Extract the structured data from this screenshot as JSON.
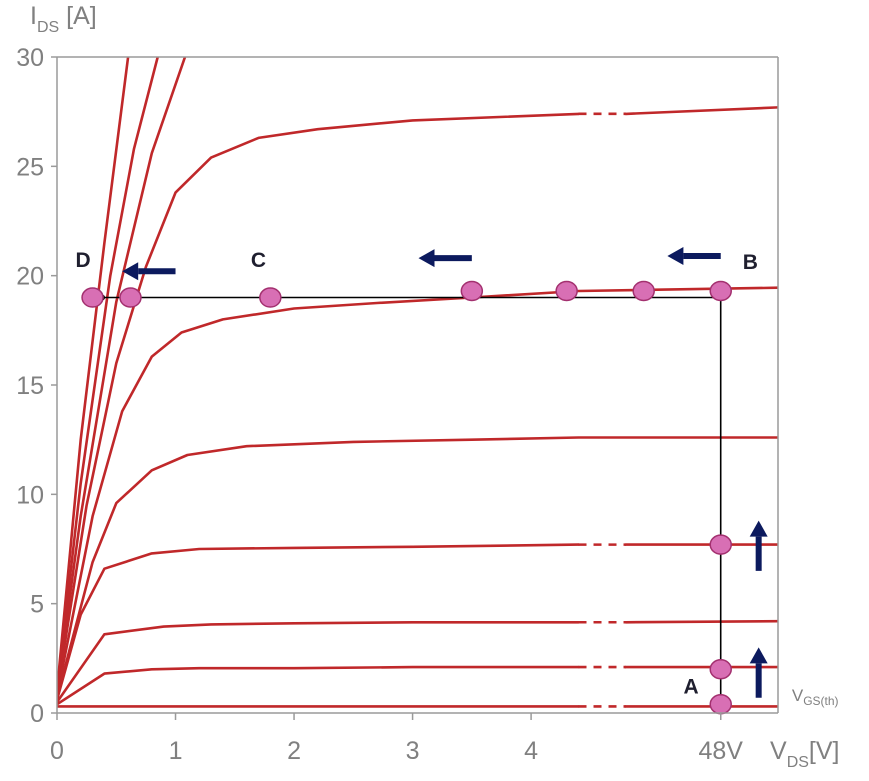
{
  "chart_data": {
    "type": "line",
    "title": "",
    "ylabel": {
      "main": "I",
      "sub": "DS",
      "unit": "[A]"
    },
    "xlabel": {
      "main": "V",
      "sub": "DS",
      "unit": "[V]"
    },
    "ylim": [
      0,
      30
    ],
    "xlim": [
      0,
      6.1
    ],
    "y_ticks": [
      {
        "value": 0,
        "label": "0"
      },
      {
        "value": 5,
        "label": "5"
      },
      {
        "value": 10,
        "label": "10"
      },
      {
        "value": 15,
        "label": "15"
      },
      {
        "value": 20,
        "label": "20"
      },
      {
        "value": 25,
        "label": "25"
      },
      {
        "value": 30,
        "label": "30"
      }
    ],
    "x_ticks": [
      {
        "value": 0,
        "label": "0"
      },
      {
        "value": 1,
        "label": "1"
      },
      {
        "value": 2,
        "label": "2"
      },
      {
        "value": 3,
        "label": "3"
      },
      {
        "value": 4,
        "label": "4"
      },
      {
        "value": 5.6,
        "label": "48V"
      }
    ],
    "grid": false,
    "colors": {
      "curve": "#c0282a",
      "marker_fill": "#d86fb4",
      "marker_stroke": "#a3306f",
      "arrow": "#0c1a5e",
      "load_line": "#000000",
      "frame": "#9a9a9a",
      "text": "#808080"
    },
    "series": [
      {
        "points": [
          [
            0,
            0.3
          ],
          [
            0.5,
            0.3
          ],
          [
            1,
            0.3
          ],
          [
            2,
            0.3
          ],
          [
            3,
            0.3
          ],
          [
            4.4,
            0.3
          ]
        ],
        "tail": [
          [
            4.8,
            0.3
          ],
          [
            6.1,
            0.3
          ]
        ]
      },
      {
        "points": [
          [
            0,
            0.4
          ],
          [
            0.4,
            1.8
          ],
          [
            0.8,
            2.0
          ],
          [
            1.2,
            2.05
          ],
          [
            2,
            2.05
          ],
          [
            3,
            2.1
          ],
          [
            4.4,
            2.1
          ]
        ],
        "tail": [
          [
            4.8,
            2.1
          ],
          [
            6.1,
            2.1
          ]
        ]
      },
      {
        "points": [
          [
            0,
            0.5
          ],
          [
            0.4,
            3.6
          ],
          [
            0.9,
            3.95
          ],
          [
            1.3,
            4.05
          ],
          [
            2,
            4.1
          ],
          [
            3,
            4.15
          ],
          [
            4.4,
            4.15
          ]
        ],
        "tail": [
          [
            4.8,
            4.15
          ],
          [
            6.1,
            4.2
          ]
        ]
      },
      {
        "points": [
          [
            0,
            0.6
          ],
          [
            0.2,
            4.5
          ],
          [
            0.4,
            6.6
          ],
          [
            0.8,
            7.3
          ],
          [
            1.2,
            7.5
          ],
          [
            2,
            7.55
          ],
          [
            3,
            7.6
          ],
          [
            4.4,
            7.7
          ]
        ],
        "tail": [
          [
            4.8,
            7.7
          ],
          [
            6.1,
            7.7
          ]
        ]
      },
      {
        "points": [
          [
            0,
            0.7
          ],
          [
            0.3,
            6.9
          ],
          [
            0.5,
            9.6
          ],
          [
            0.8,
            11.1
          ],
          [
            1.1,
            11.8
          ],
          [
            1.6,
            12.2
          ],
          [
            2.5,
            12.4
          ],
          [
            3.5,
            12.5
          ],
          [
            4.4,
            12.6
          ],
          [
            6.1,
            12.6
          ]
        ]
      },
      {
        "points": [
          [
            0,
            0.8
          ],
          [
            0.3,
            9.0
          ],
          [
            0.55,
            13.8
          ],
          [
            0.8,
            16.3
          ],
          [
            1.05,
            17.4
          ],
          [
            1.4,
            18.0
          ],
          [
            2.0,
            18.5
          ],
          [
            2.7,
            18.75
          ],
          [
            3.5,
            19.0
          ],
          [
            4.4,
            19.3
          ],
          [
            6.1,
            19.45
          ]
        ]
      },
      {
        "points": [
          [
            0,
            0.9
          ],
          [
            0.25,
            9.5
          ],
          [
            0.5,
            16.0
          ],
          [
            0.75,
            20.4
          ],
          [
            1.0,
            23.8
          ],
          [
            1.3,
            25.4
          ],
          [
            1.7,
            26.3
          ],
          [
            2.2,
            26.7
          ],
          [
            3.0,
            27.1
          ],
          [
            4.4,
            27.4
          ]
        ],
        "tail": [
          [
            4.8,
            27.4
          ],
          [
            6.1,
            27.7
          ]
        ]
      },
      {
        "points": [
          [
            0,
            1.0
          ],
          [
            0.2,
            9.0
          ],
          [
            0.5,
            18.8
          ],
          [
            0.8,
            25.6
          ],
          [
            1.08,
            30.0
          ]
        ]
      },
      {
        "points": [
          [
            0,
            1.0
          ],
          [
            0.2,
            10.5
          ],
          [
            0.45,
            20.0
          ],
          [
            0.65,
            25.8
          ],
          [
            0.85,
            30.0
          ]
        ]
      },
      {
        "points": [
          [
            0,
            1.0
          ],
          [
            0.2,
            12.5
          ],
          [
            0.4,
            21.5
          ],
          [
            0.6,
            30.0
          ]
        ]
      }
    ],
    "load_line": [
      [
        0.38,
        19.0
      ],
      [
        5.6,
        19.0
      ],
      [
        5.6,
        0.3
      ]
    ],
    "markers": [
      [
        0.3,
        19.0
      ],
      [
        0.62,
        19.0
      ],
      [
        1.8,
        19.0
      ],
      [
        3.5,
        19.3
      ],
      [
        4.3,
        19.3
      ],
      [
        4.95,
        19.3
      ],
      [
        5.6,
        19.3
      ],
      [
        5.6,
        7.7
      ],
      [
        5.6,
        2.0
      ],
      [
        5.6,
        0.4
      ]
    ],
    "arrows": [
      {
        "x1": 1.0,
        "y1": 20.2,
        "x2": 0.55,
        "y2": 20.2
      },
      {
        "x1": 3.5,
        "y1": 20.8,
        "x2": 3.05,
        "y2": 20.8
      },
      {
        "x1": 5.6,
        "y1": 20.9,
        "x2": 5.15,
        "y2": 20.9
      },
      {
        "x1": 5.92,
        "y1": 6.5,
        "x2": 5.92,
        "y2": 8.8
      },
      {
        "x1": 5.92,
        "y1": 0.7,
        "x2": 5.92,
        "y2": 3.0
      }
    ],
    "point_labels": [
      {
        "text": "D",
        "x": 0.22,
        "y": 20.4
      },
      {
        "text": "C",
        "x": 1.7,
        "y": 20.4
      },
      {
        "text": "B",
        "x": 5.85,
        "y": 20.3
      },
      {
        "text": "A",
        "x": 5.35,
        "y": 0.9
      }
    ],
    "annotation": {
      "main": "V",
      "sub": "GS(th)",
      "x": 6.2,
      "y": 0.55
    }
  }
}
